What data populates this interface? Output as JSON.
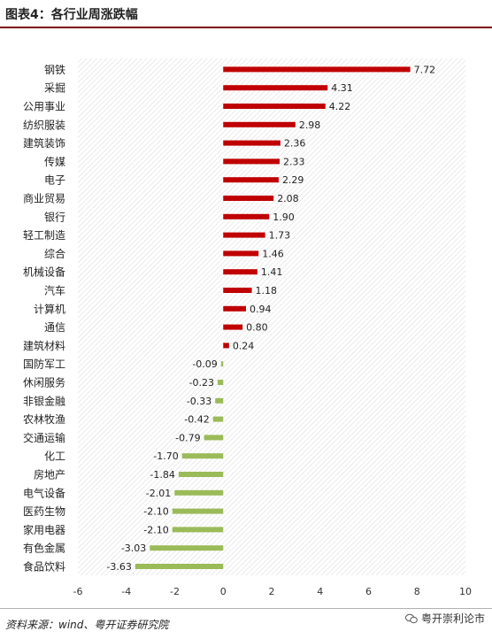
{
  "header": {
    "title": "图表4：各行业周涨跌幅"
  },
  "footer": {
    "source": "资料来源：wind、粤开证券研究院",
    "watermark": "粤开崇利论市"
  },
  "colors": {
    "positive": "#c00000",
    "negative": "#9bbb59",
    "title_rule": "#7f0000"
  },
  "chart_data": {
    "type": "bar",
    "orientation": "horizontal",
    "title": "",
    "xlabel": "",
    "ylabel": "",
    "xlim": [
      -6,
      10
    ],
    "xticks": [
      "-6",
      "-4",
      "-2",
      "0",
      "2",
      "4",
      "6",
      "8",
      "10"
    ],
    "grid": false,
    "legend": "none",
    "categories": [
      "钢铁",
      "采掘",
      "公用事业",
      "纺织服装",
      "建筑装饰",
      "传媒",
      "电子",
      "商业贸易",
      "银行",
      "轻工制造",
      "综合",
      "机械设备",
      "汽车",
      "计算机",
      "通信",
      "建筑材料",
      "国防军工",
      "休闲服务",
      "非银金融",
      "农林牧渔",
      "交通运输",
      "化工",
      "房地产",
      "电气设备",
      "医药生物",
      "家用电器",
      "有色金属",
      "食品饮料"
    ],
    "values": [
      7.72,
      4.31,
      4.22,
      2.98,
      2.36,
      2.33,
      2.29,
      2.08,
      1.9,
      1.73,
      1.46,
      1.41,
      1.18,
      0.94,
      0.8,
      0.24,
      -0.09,
      -0.23,
      -0.33,
      -0.42,
      -0.79,
      -1.7,
      -1.84,
      -2.01,
      -2.1,
      -2.1,
      -3.03,
      -3.63
    ],
    "labels": [
      "7.72",
      "4.31",
      "4.22",
      "2.98",
      "2.36",
      "2.33",
      "2.29",
      "2.08",
      "1.90",
      "1.73",
      "1.46",
      "1.41",
      "1.18",
      "0.94",
      "0.80",
      "0.24",
      "-0.09",
      "-0.23",
      "-0.33",
      "-0.42",
      "-0.79",
      "-1.70",
      "-1.84",
      "-2.01",
      "-2.10",
      "-2.10",
      "-3.03",
      "-3.63"
    ]
  }
}
